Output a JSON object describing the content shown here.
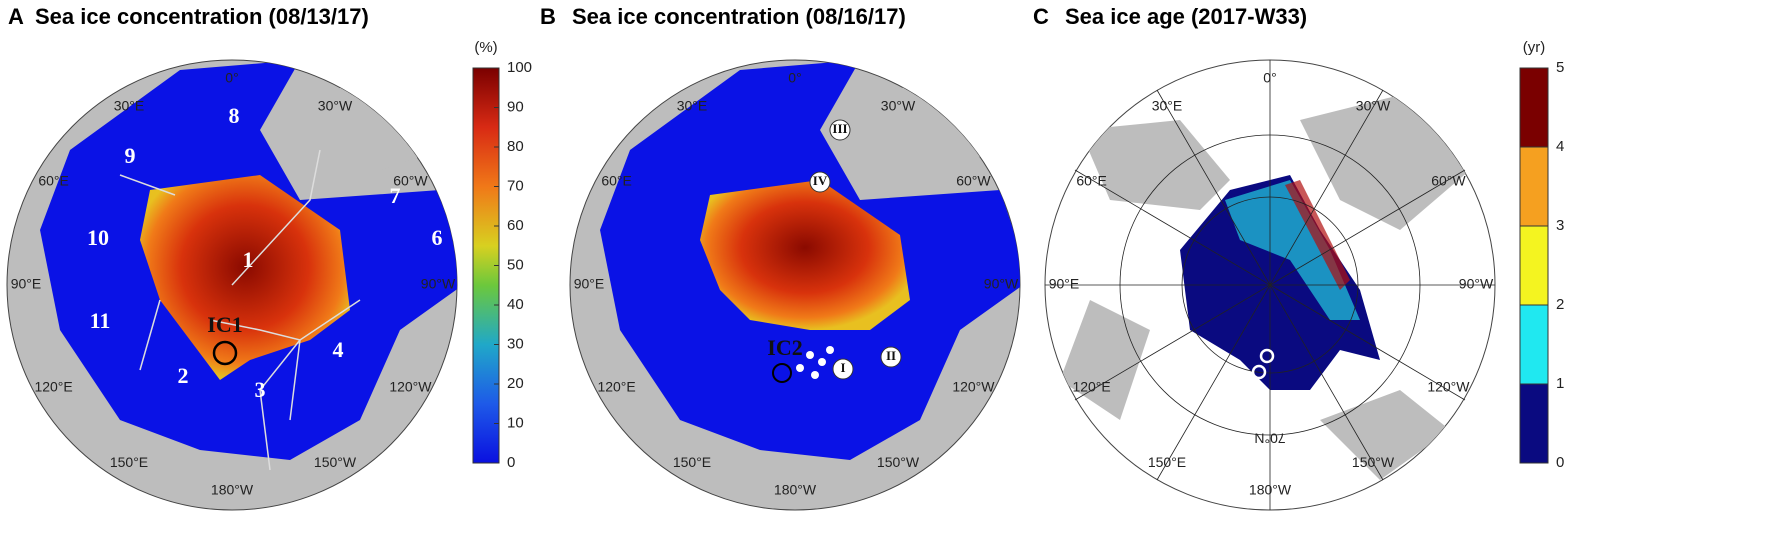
{
  "panels": [
    {
      "letter": "A",
      "title": "Sea ice concentration (08/13/17)",
      "longitudes": [
        "0°",
        "30°W",
        "60°W",
        "90°W",
        "120°W",
        "150°W",
        "180°W",
        "150°E",
        "120°E",
        "90°E",
        "60°E",
        "30°E"
      ],
      "regions": [
        "1",
        "2",
        "3",
        "4",
        "6",
        "7",
        "8",
        "9",
        "10",
        "11"
      ],
      "site": "IC1"
    },
    {
      "letter": "B",
      "title": "Sea ice concentration (08/16/17)",
      "longitudes": [
        "0°",
        "30°W",
        "60°W",
        "90°W",
        "120°W",
        "150°W",
        "180°W",
        "150°E",
        "120°E",
        "90°E",
        "60°E",
        "30°E"
      ],
      "regions": [
        "I",
        "II",
        "III",
        "IV"
      ],
      "site": "IC2"
    },
    {
      "letter": "C",
      "title": "Sea ice age (2017-W33)",
      "longitudes": [
        "0°",
        "30°W",
        "60°W",
        "90°W",
        "120°W",
        "150°W",
        "180°W",
        "150°E",
        "120°E",
        "90°E",
        "60°E",
        "30°E"
      ],
      "inner_label": "70°N"
    }
  ],
  "colorbars": [
    {
      "unit": "(%)",
      "ticks": [
        0,
        10,
        20,
        30,
        40,
        50,
        60,
        70,
        80,
        90,
        100
      ]
    },
    {
      "unit": "(yr)",
      "ticks": [
        0,
        1,
        2,
        3,
        4,
        5
      ]
    }
  ]
}
